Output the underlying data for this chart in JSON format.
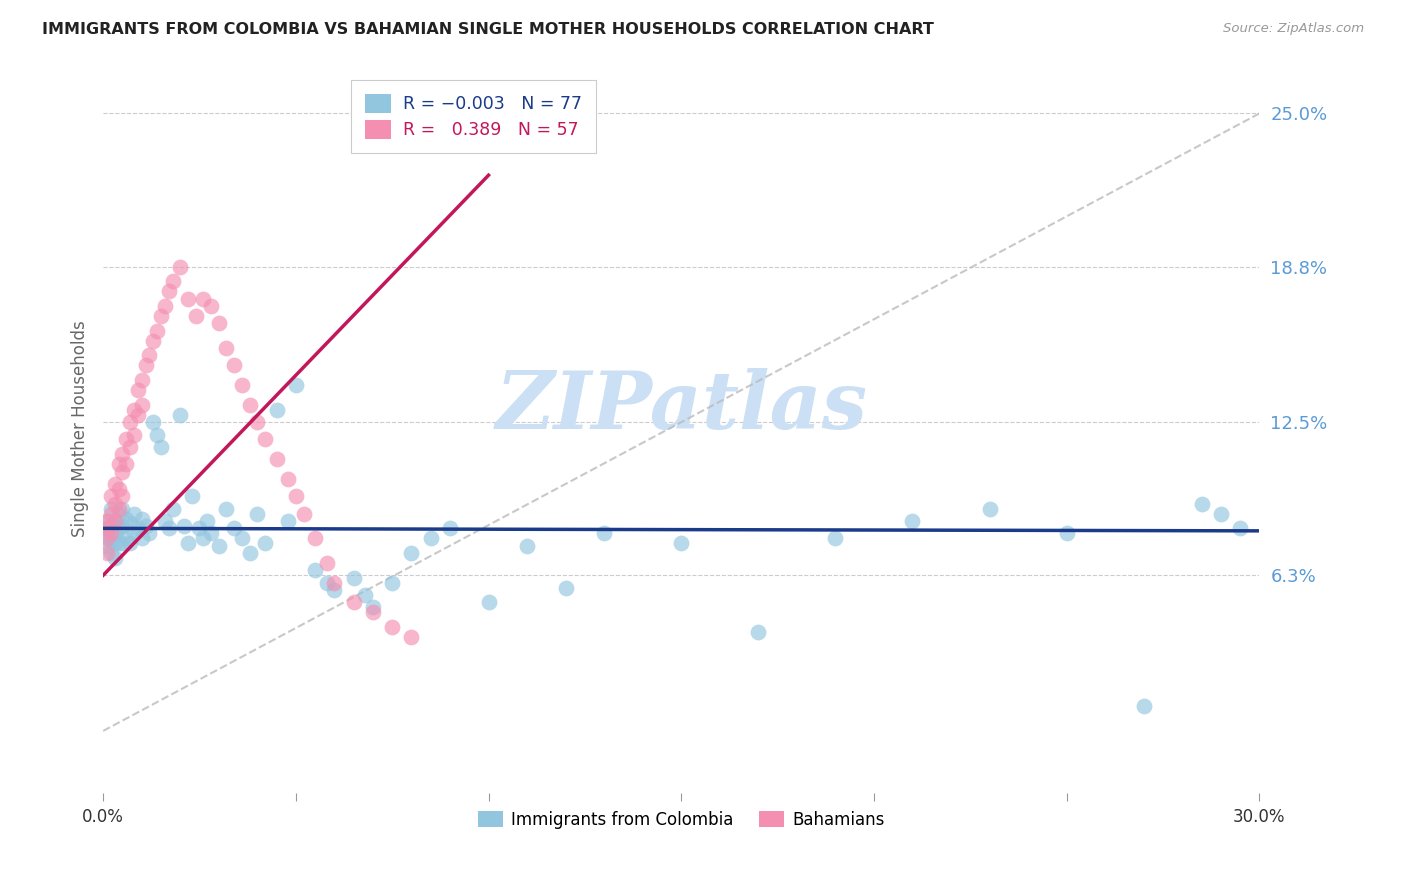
{
  "title": "IMMIGRANTS FROM COLOMBIA VS BAHAMIAN SINGLE MOTHER HOUSEHOLDS CORRELATION CHART",
  "source": "Source: ZipAtlas.com",
  "ylabel": "Single Mother Households",
  "xlim": [
    0.0,
    0.3
  ],
  "ylim": [
    -0.025,
    0.27
  ],
  "yticks": [
    0.063,
    0.125,
    0.188,
    0.25
  ],
  "ytick_labels": [
    "6.3%",
    "12.5%",
    "18.8%",
    "25.0%"
  ],
  "xticks": [
    0.0,
    0.05,
    0.1,
    0.15,
    0.2,
    0.25,
    0.3
  ],
  "xtick_labels": [
    "0.0%",
    "",
    "",
    "",
    "",
    "",
    "30.0%"
  ],
  "color_blue": "#92c5de",
  "color_pink": "#f48fb1",
  "line_blue": "#1a3a8a",
  "line_pink": "#c2185b",
  "line_diag": "#bbbbbb",
  "tick_color_right": "#5b9bd5",
  "watermark_color": "#cce0f5",
  "colombia_x": [
    0.001,
    0.001,
    0.001,
    0.001,
    0.002,
    0.002,
    0.002,
    0.002,
    0.003,
    0.003,
    0.003,
    0.003,
    0.004,
    0.004,
    0.004,
    0.005,
    0.005,
    0.005,
    0.006,
    0.006,
    0.007,
    0.007,
    0.008,
    0.008,
    0.009,
    0.01,
    0.01,
    0.011,
    0.012,
    0.013,
    0.014,
    0.015,
    0.016,
    0.017,
    0.018,
    0.02,
    0.021,
    0.022,
    0.023,
    0.025,
    0.026,
    0.027,
    0.028,
    0.03,
    0.032,
    0.034,
    0.036,
    0.038,
    0.04,
    0.042,
    0.045,
    0.048,
    0.05,
    0.055,
    0.058,
    0.06,
    0.065,
    0.068,
    0.07,
    0.075,
    0.08,
    0.085,
    0.09,
    0.1,
    0.11,
    0.12,
    0.13,
    0.15,
    0.17,
    0.19,
    0.21,
    0.23,
    0.25,
    0.27,
    0.285,
    0.29,
    0.295
  ],
  "colombia_y": [
    0.085,
    0.082,
    0.078,
    0.075,
    0.09,
    0.083,
    0.078,
    0.072,
    0.085,
    0.08,
    0.076,
    0.07,
    0.088,
    0.082,
    0.076,
    0.09,
    0.083,
    0.076,
    0.086,
    0.078,
    0.084,
    0.076,
    0.088,
    0.08,
    0.082,
    0.086,
    0.078,
    0.083,
    0.08,
    0.125,
    0.12,
    0.115,
    0.085,
    0.082,
    0.09,
    0.128,
    0.083,
    0.076,
    0.095,
    0.082,
    0.078,
    0.085,
    0.08,
    0.075,
    0.09,
    0.082,
    0.078,
    0.072,
    0.088,
    0.076,
    0.13,
    0.085,
    0.14,
    0.065,
    0.06,
    0.057,
    0.062,
    0.055,
    0.05,
    0.06,
    0.072,
    0.078,
    0.082,
    0.052,
    0.075,
    0.058,
    0.08,
    0.076,
    0.04,
    0.078,
    0.085,
    0.09,
    0.08,
    0.01,
    0.092,
    0.088,
    0.082
  ],
  "bahamian_x": [
    0.001,
    0.001,
    0.001,
    0.001,
    0.002,
    0.002,
    0.002,
    0.003,
    0.003,
    0.003,
    0.004,
    0.004,
    0.004,
    0.005,
    0.005,
    0.005,
    0.006,
    0.006,
    0.007,
    0.007,
    0.008,
    0.008,
    0.009,
    0.009,
    0.01,
    0.01,
    0.011,
    0.012,
    0.013,
    0.014,
    0.015,
    0.016,
    0.017,
    0.018,
    0.02,
    0.022,
    0.024,
    0.026,
    0.028,
    0.03,
    0.032,
    0.034,
    0.036,
    0.038,
    0.04,
    0.042,
    0.045,
    0.048,
    0.05,
    0.052,
    0.055,
    0.058,
    0.06,
    0.065,
    0.07,
    0.075,
    0.08
  ],
  "bahamian_y": [
    0.085,
    0.082,
    0.078,
    0.072,
    0.095,
    0.088,
    0.08,
    0.1,
    0.092,
    0.085,
    0.108,
    0.098,
    0.09,
    0.112,
    0.105,
    0.095,
    0.118,
    0.108,
    0.125,
    0.115,
    0.13,
    0.12,
    0.138,
    0.128,
    0.142,
    0.132,
    0.148,
    0.152,
    0.158,
    0.162,
    0.168,
    0.172,
    0.178,
    0.182,
    0.188,
    0.175,
    0.168,
    0.175,
    0.172,
    0.165,
    0.155,
    0.148,
    0.14,
    0.132,
    0.125,
    0.118,
    0.11,
    0.102,
    0.095,
    0.088,
    0.078,
    0.068,
    0.06,
    0.052,
    0.048,
    0.042,
    0.038
  ],
  "colombia_line_x": [
    0.0,
    0.3
  ],
  "colombia_line_y": [
    0.082,
    0.081
  ],
  "bahamian_line_x": [
    0.0,
    0.1
  ],
  "bahamian_line_y": [
    0.063,
    0.225
  ]
}
